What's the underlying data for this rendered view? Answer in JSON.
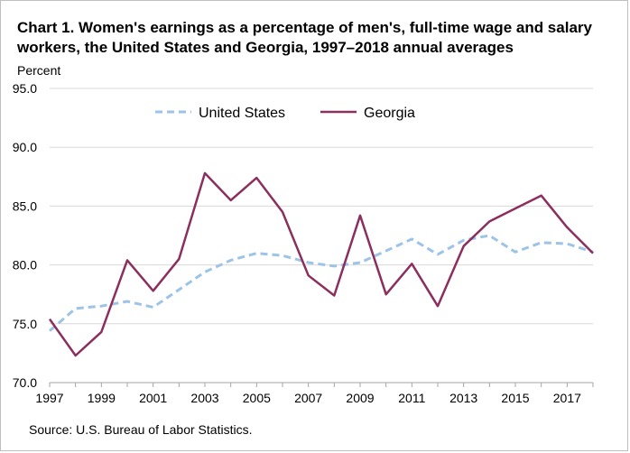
{
  "chart_data": {
    "type": "line",
    "title": "Chart 1. Women's earnings as a percentage of men's, full-time wage and salary workers, the United States and Georgia, 1997–2018 annual averages",
    "ylabel": "Percent",
    "xlabel": "",
    "source": "Source:  U.S. Bureau of Labor Statistics.",
    "x": [
      1997,
      1998,
      1999,
      2000,
      2001,
      2002,
      2003,
      2004,
      2005,
      2006,
      2007,
      2008,
      2009,
      2010,
      2011,
      2012,
      2013,
      2014,
      2015,
      2016,
      2017,
      2018
    ],
    "ylim": [
      70.0,
      95.0
    ],
    "yticks": [
      "70.0",
      "75.0",
      "80.0",
      "85.0",
      "90.0",
      "95.0"
    ],
    "xticks": [
      "1997",
      "1999",
      "2001",
      "2003",
      "2005",
      "2007",
      "2009",
      "2011",
      "2013",
      "2015",
      "2017"
    ],
    "grid": true,
    "legend_position": "top",
    "series": [
      {
        "name": "United States",
        "color": "#9dc3e6",
        "style": "dashed",
        "values": [
          74.4,
          76.3,
          76.5,
          76.9,
          76.4,
          77.9,
          79.4,
          80.4,
          81.0,
          80.8,
          80.2,
          79.9,
          80.2,
          81.2,
          82.2,
          80.9,
          82.1,
          82.5,
          81.1,
          81.9,
          81.8,
          81.1
        ]
      },
      {
        "name": "Georgia",
        "color": "#8b2f5e",
        "style": "solid",
        "values": [
          75.4,
          72.3,
          74.3,
          80.4,
          77.8,
          80.5,
          87.8,
          85.5,
          87.4,
          84.5,
          79.1,
          77.4,
          84.2,
          77.5,
          80.1,
          76.5,
          81.6,
          83.7,
          84.8,
          85.9,
          83.2,
          81.0
        ]
      }
    ]
  }
}
